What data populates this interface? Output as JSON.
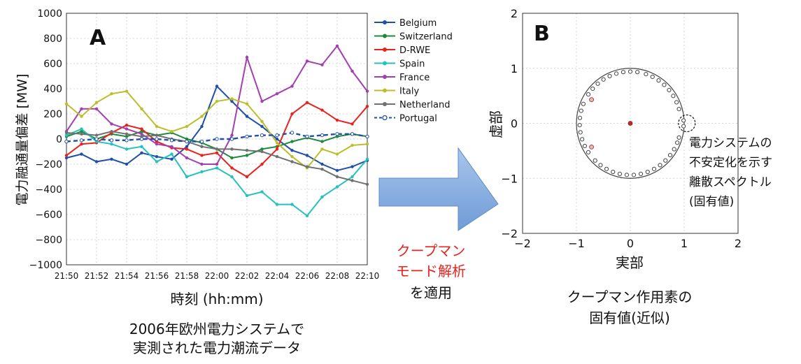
{
  "panel_a": {
    "letter": "A",
    "xlabel": "時刻 (hh:mm)",
    "ylabel": "電力融通量偏差 [MW]",
    "caption_lines": [
      "2006年欧州電力システムで",
      "実測された電力潮流データ"
    ]
  },
  "arrow": {
    "label_red_lines": [
      "クープマン",
      "モード解析"
    ],
    "label_black": "を適用",
    "colors": {
      "arrow_fill": "#7fa9dc",
      "label_red": "#e8231d"
    }
  },
  "panel_b": {
    "letter": "B",
    "xlabel": "実部",
    "ylabel": "虚部",
    "annotation_lines": [
      "電力システムの",
      "不安定化を示す",
      "離散スペクトル",
      "(固有値)"
    ],
    "caption_lines": [
      "クープマン作用素の",
      "固有値(近似)"
    ]
  },
  "chart_data": [
    {
      "type": "line",
      "x": [
        "21:50",
        "21:51",
        "21:52",
        "21:53",
        "21:54",
        "21:55",
        "21:56",
        "21:57",
        "21:58",
        "21:59",
        "22:00",
        "22:01",
        "22:02",
        "22:03",
        "22:04",
        "22:05",
        "22:06",
        "22:07",
        "22:08",
        "22:09",
        "22:10"
      ],
      "xticks": [
        "21:50",
        "21:52",
        "21:54",
        "21:56",
        "21:58",
        "22:00",
        "22:02",
        "22:04",
        "22:06",
        "22:08",
        "22:10"
      ],
      "ylim": [
        -1000,
        1000
      ],
      "yticks": [
        -1000,
        -800,
        -600,
        -400,
        -200,
        0,
        200,
        400,
        600,
        800,
        1000
      ],
      "legend_position": "outside-right",
      "grid": true,
      "series": [
        {
          "name": "Belgium",
          "color": "#1f4fa8",
          "marker": "dot",
          "dashed": false,
          "values": [
            -150,
            -120,
            -180,
            -160,
            -200,
            -110,
            -140,
            -160,
            -60,
            100,
            420,
            300,
            180,
            100,
            0,
            -90,
            -130,
            -200,
            -250,
            -220,
            -170
          ]
        },
        {
          "name": "Switzerland",
          "color": "#1e8a3c",
          "marker": "dot",
          "dashed": false,
          "values": [
            20,
            60,
            0,
            40,
            20,
            60,
            30,
            50,
            0,
            -30,
            -80,
            -150,
            -130,
            -80,
            -60,
            -20,
            10,
            -20,
            20,
            40,
            20
          ]
        },
        {
          "name": "D-RWE",
          "color": "#e8231d",
          "marker": "dot",
          "dashed": false,
          "values": [
            -130,
            -40,
            -30,
            50,
            110,
            80,
            -20,
            -70,
            -80,
            -130,
            -110,
            -230,
            -300,
            -200,
            -80,
            200,
            290,
            230,
            150,
            120,
            260
          ]
        },
        {
          "name": "Spain",
          "color": "#27c1bd",
          "marker": "dot",
          "dashed": false,
          "values": [
            30,
            80,
            -20,
            -40,
            -80,
            -60,
            -180,
            -120,
            -300,
            -260,
            -230,
            -300,
            -450,
            -420,
            -520,
            -520,
            -610,
            -460,
            -380,
            -300,
            -160
          ]
        },
        {
          "name": "France",
          "color": "#a33fb0",
          "marker": "dot",
          "dashed": false,
          "values": [
            60,
            240,
            240,
            120,
            80,
            40,
            -40,
            -60,
            -150,
            -200,
            -200,
            30,
            650,
            300,
            360,
            420,
            620,
            590,
            740,
            540,
            380
          ]
        },
        {
          "name": "Italy",
          "color": "#bcbe2b",
          "marker": "dot",
          "dashed": false,
          "values": [
            280,
            180,
            290,
            360,
            380,
            240,
            100,
            60,
            100,
            180,
            300,
            320,
            280,
            140,
            -30,
            -140,
            -230,
            -80,
            -120,
            -50,
            -40
          ]
        },
        {
          "name": "Netherland",
          "color": "#707070",
          "marker": "dot",
          "dashed": false,
          "values": [
            50,
            40,
            30,
            60,
            40,
            20,
            30,
            0,
            -20,
            -60,
            -80,
            -80,
            -90,
            -100,
            -140,
            -180,
            -220,
            -240,
            -300,
            -330,
            -360
          ]
        },
        {
          "name": "Portugal",
          "color": "#1f4fa8",
          "marker": "circle",
          "dashed": true,
          "values": [
            -20,
            -10,
            0,
            -10,
            -10,
            0,
            0,
            -10,
            -20,
            -20,
            0,
            0,
            20,
            30,
            30,
            50,
            20,
            30,
            40,
            40,
            20
          ]
        }
      ]
    },
    {
      "type": "scatter",
      "xlim": [
        -2,
        2
      ],
      "ylim": [
        -2,
        2
      ],
      "xticks": [
        -2,
        -1,
        0,
        1,
        2
      ],
      "yticks": [
        -2,
        -1,
        0,
        1,
        2
      ],
      "grid": true,
      "unit_circle": true,
      "highlight_point": {
        "x": 1.05,
        "y": 0.0
      },
      "ring_angles_deg": [
        82,
        90,
        98,
        106,
        114,
        122,
        130,
        138,
        146,
        158,
        166,
        174,
        182,
        190,
        198,
        206,
        214,
        226,
        234,
        242,
        250,
        258,
        266,
        274,
        282,
        290,
        298,
        306,
        314,
        322,
        330,
        338,
        344,
        16,
        24,
        32,
        40,
        48,
        56,
        64,
        72
      ],
      "ring_radius": 0.94,
      "highlight_ring_angles_deg": [
        3,
        357
      ],
      "highlight_ring_radius": 0.99,
      "inner_points": [
        {
          "x": -0.72,
          "y": 0.43,
          "fill": "#f3b2b2"
        },
        {
          "x": -0.72,
          "y": -0.43,
          "fill": "#f3b2b2"
        },
        {
          "x": 0.0,
          "y": 0.0,
          "fill": "#cc2222"
        }
      ]
    }
  ]
}
